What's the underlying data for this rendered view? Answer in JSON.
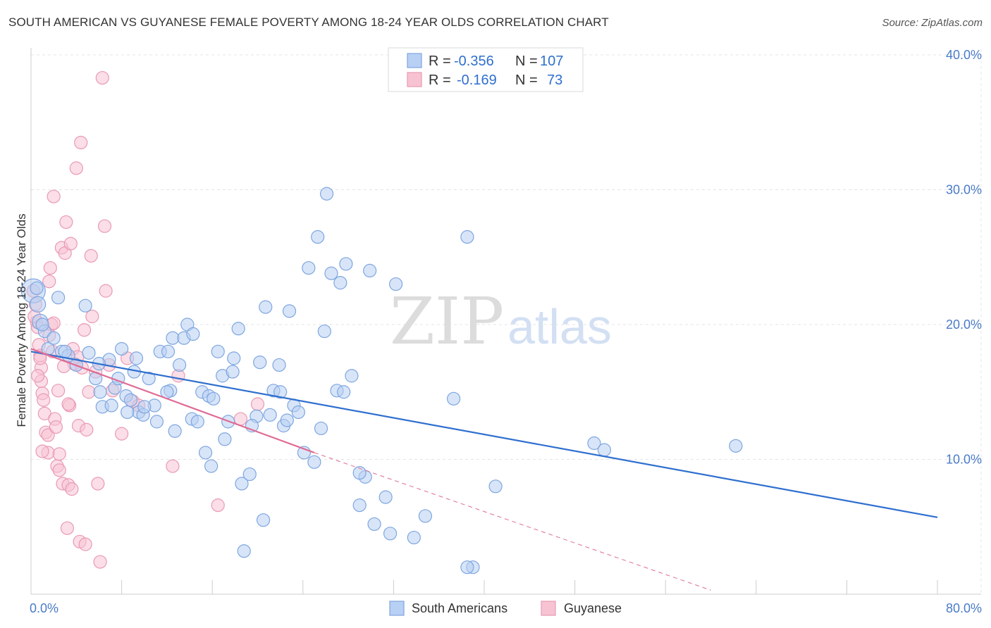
{
  "title": "SOUTH AMERICAN VS GUYANESE FEMALE POVERTY AMONG 18-24 YEAR OLDS CORRELATION CHART",
  "source": "Source: ZipAtlas.com",
  "watermark": {
    "zip": "ZIP",
    "atlas": "atlas"
  },
  "colors": {
    "blue_fill": "#b8d0f3",
    "blue_stroke": "#7ea6e0",
    "blue_line": "#2f6fcf",
    "pink_fill": "#f7c3d3",
    "pink_stroke": "#e99ab4",
    "pink_line": "#e06a94",
    "grid": "#e4e4e4",
    "axis_label": "#4a7bc8"
  },
  "legend": {
    "rows": [
      {
        "r_label": "R =",
        "r_value": "-0.356",
        "n_label": "N =",
        "n_value": "107"
      },
      {
        "r_label": "R =",
        "r_value": "-0.169",
        "n_label": "N =",
        "n_value": "73"
      }
    ]
  },
  "chart_data": {
    "type": "scatter",
    "xlabel": "",
    "ylabel": "Female Poverty Among 18-24 Year Olds",
    "xlim": [
      0,
      80
    ],
    "ylim": [
      0,
      40
    ],
    "x_tick_labels": [
      "0.0%",
      "80.0%"
    ],
    "y_ticks": [
      10,
      20,
      30,
      40
    ],
    "y_tick_labels": [
      "10.0%",
      "20.0%",
      "30.0%",
      "40.0%"
    ],
    "grid": true,
    "legend_position": "top-center",
    "series": [
      {
        "name": "South Americans",
        "color": "#b8d0f3",
        "r": -0.356,
        "n": 107,
        "trend": {
          "x0": 0,
          "y0": 18.0,
          "x1": 80,
          "y1": 5.7,
          "dashed_from": null
        },
        "points": [
          [
            0.2,
            22.5
          ],
          [
            0.6,
            21.5
          ],
          [
            0.8,
            20.2
          ],
          [
            1.2,
            19.5
          ],
          [
            2.4,
            22.0
          ],
          [
            1.5,
            18.2
          ],
          [
            2.7,
            18.0
          ],
          [
            3.3,
            17.7
          ],
          [
            4.0,
            17.0
          ],
          [
            4.8,
            21.4
          ],
          [
            5.1,
            17.9
          ],
          [
            5.7,
            16.0
          ],
          [
            6.1,
            15.0
          ],
          [
            6.3,
            13.9
          ],
          [
            6.9,
            17.4
          ],
          [
            7.1,
            14.0
          ],
          [
            7.4,
            15.3
          ],
          [
            7.7,
            16.0
          ],
          [
            8.0,
            18.2
          ],
          [
            8.4,
            14.7
          ],
          [
            8.8,
            14.4
          ],
          [
            9.1,
            16.5
          ],
          [
            9.3,
            17.5
          ],
          [
            9.5,
            13.5
          ],
          [
            9.9,
            13.3
          ],
          [
            10.4,
            16.0
          ],
          [
            10.9,
            14.0
          ],
          [
            11.1,
            12.8
          ],
          [
            11.4,
            18.0
          ],
          [
            12.1,
            18.0
          ],
          [
            12.3,
            15.1
          ],
          [
            12.5,
            19.0
          ],
          [
            12.7,
            12.1
          ],
          [
            13.1,
            17.0
          ],
          [
            13.5,
            19.0
          ],
          [
            13.8,
            20.0
          ],
          [
            14.2,
            13.0
          ],
          [
            14.3,
            19.3
          ],
          [
            14.7,
            12.8
          ],
          [
            15.1,
            15.0
          ],
          [
            15.4,
            10.5
          ],
          [
            15.7,
            14.7
          ],
          [
            15.9,
            9.5
          ],
          [
            16.1,
            14.5
          ],
          [
            16.5,
            18.0
          ],
          [
            16.9,
            16.2
          ],
          [
            17.1,
            11.5
          ],
          [
            17.4,
            12.8
          ],
          [
            17.8,
            16.5
          ],
          [
            17.9,
            17.5
          ],
          [
            18.3,
            19.7
          ],
          [
            18.6,
            8.2
          ],
          [
            18.8,
            3.2
          ],
          [
            19.3,
            8.9
          ],
          [
            19.9,
            13.2
          ],
          [
            20.2,
            17.2
          ],
          [
            20.5,
            5.5
          ],
          [
            20.7,
            21.3
          ],
          [
            21.1,
            13.3
          ],
          [
            21.4,
            15.1
          ],
          [
            21.9,
            17.0
          ],
          [
            22.3,
            12.5
          ],
          [
            22.6,
            12.9
          ],
          [
            22.8,
            21.0
          ],
          [
            23.2,
            14.0
          ],
          [
            23.6,
            13.5
          ],
          [
            24.1,
            10.5
          ],
          [
            24.5,
            24.2
          ],
          [
            25.0,
            9.8
          ],
          [
            25.3,
            26.5
          ],
          [
            25.6,
            12.3
          ],
          [
            25.9,
            19.5
          ],
          [
            26.1,
            29.7
          ],
          [
            26.5,
            23.8
          ],
          [
            27.0,
            15.1
          ],
          [
            27.3,
            23.1
          ],
          [
            27.6,
            15.0
          ],
          [
            27.8,
            24.5
          ],
          [
            28.3,
            16.2
          ],
          [
            29.0,
            6.6
          ],
          [
            29.5,
            8.7
          ],
          [
            29.9,
            24.0
          ],
          [
            30.3,
            5.2
          ],
          [
            31.3,
            7.2
          ],
          [
            31.7,
            4.5
          ],
          [
            32.2,
            23.0
          ],
          [
            33.8,
            4.2
          ],
          [
            34.8,
            5.8
          ],
          [
            37.3,
            14.5
          ],
          [
            38.5,
            26.5
          ],
          [
            39.0,
            2.0
          ],
          [
            41.0,
            8.0
          ],
          [
            49.7,
            11.2
          ],
          [
            50.6,
            10.7
          ],
          [
            62.2,
            11.0
          ],
          [
            1.0,
            20.0
          ],
          [
            3.0,
            18.0
          ],
          [
            0.5,
            22.7
          ],
          [
            2.0,
            19.0
          ],
          [
            6.0,
            17.1
          ],
          [
            10.0,
            13.9
          ],
          [
            12.0,
            15.0
          ],
          [
            19.5,
            12.5
          ],
          [
            22.0,
            15.0
          ],
          [
            29.0,
            9.0
          ],
          [
            38.5,
            2.0
          ],
          [
            8.5,
            13.5
          ]
        ]
      },
      {
        "name": "Guyanese",
        "color": "#f7c3d3",
        "r": -0.169,
        "n": 73,
        "trend": {
          "x0": 0,
          "y0": 18.2,
          "x1": 25,
          "y1": 10.5,
          "dash_to_x": 60,
          "dash_to_y": 0.3
        },
        "points": [
          [
            0.2,
            22.5
          ],
          [
            0.4,
            21.5
          ],
          [
            0.5,
            20.2
          ],
          [
            0.6,
            19.8
          ],
          [
            0.7,
            18.5
          ],
          [
            0.8,
            17.7
          ],
          [
            0.9,
            16.8
          ],
          [
            0.9,
            15.8
          ],
          [
            1.0,
            14.9
          ],
          [
            1.1,
            14.4
          ],
          [
            1.2,
            13.4
          ],
          [
            1.3,
            12.0
          ],
          [
            1.5,
            11.8
          ],
          [
            1.5,
            10.5
          ],
          [
            1.6,
            23.2
          ],
          [
            1.7,
            24.2
          ],
          [
            1.8,
            20.0
          ],
          [
            1.9,
            18.0
          ],
          [
            2.0,
            29.5
          ],
          [
            2.1,
            13.0
          ],
          [
            2.2,
            12.4
          ],
          [
            2.3,
            9.5
          ],
          [
            2.5,
            10.4
          ],
          [
            2.5,
            9.2
          ],
          [
            2.7,
            25.7
          ],
          [
            2.8,
            8.2
          ],
          [
            3.0,
            25.3
          ],
          [
            3.1,
            27.6
          ],
          [
            3.2,
            4.9
          ],
          [
            3.3,
            8.1
          ],
          [
            3.4,
            14.0
          ],
          [
            3.5,
            26.0
          ],
          [
            3.6,
            7.8
          ],
          [
            3.7,
            18.2
          ],
          [
            3.8,
            17.1
          ],
          [
            4.0,
            31.6
          ],
          [
            4.1,
            17.6
          ],
          [
            4.2,
            12.5
          ],
          [
            4.3,
            3.9
          ],
          [
            4.4,
            33.5
          ],
          [
            4.5,
            16.8
          ],
          [
            4.7,
            19.6
          ],
          [
            4.8,
            3.7
          ],
          [
            4.9,
            12.2
          ],
          [
            5.1,
            15.0
          ],
          [
            5.3,
            25.1
          ],
          [
            5.4,
            20.6
          ],
          [
            5.7,
            16.5
          ],
          [
            5.9,
            8.2
          ],
          [
            6.1,
            2.4
          ],
          [
            6.3,
            38.3
          ],
          [
            6.5,
            27.3
          ],
          [
            6.6,
            22.5
          ],
          [
            6.9,
            17.0
          ],
          [
            7.2,
            15.1
          ],
          [
            8.0,
            11.9
          ],
          [
            8.5,
            17.5
          ],
          [
            9.0,
            14.3
          ],
          [
            9.5,
            14.0
          ],
          [
            12.5,
            9.5
          ],
          [
            13.0,
            16.2
          ],
          [
            16.5,
            6.6
          ],
          [
            18.5,
            13.0
          ],
          [
            20.0,
            14.1
          ],
          [
            0.3,
            20.6
          ],
          [
            0.6,
            16.2
          ],
          [
            1.0,
            10.6
          ],
          [
            2.4,
            15.1
          ],
          [
            3.3,
            14.1
          ],
          [
            1.6,
            19.2
          ],
          [
            2.9,
            16.9
          ],
          [
            0.8,
            17.5
          ],
          [
            2.0,
            20.1
          ]
        ]
      }
    ]
  },
  "bottom_legend": [
    "South Americans",
    "Guyanese"
  ]
}
